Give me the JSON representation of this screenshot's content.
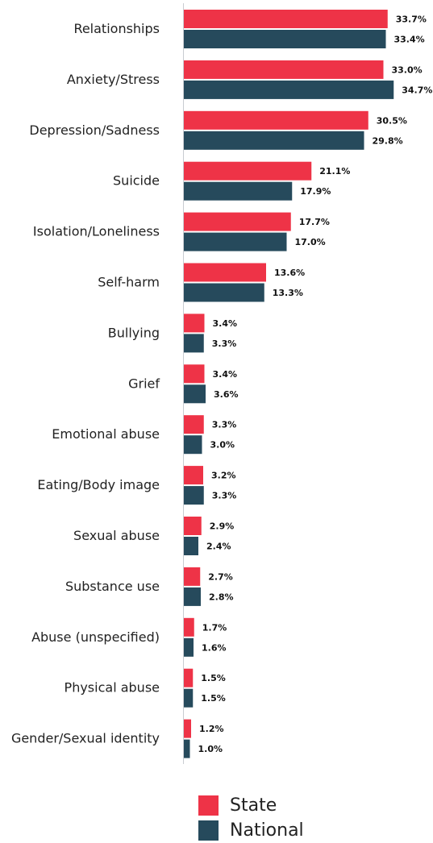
{
  "chart_data": {
    "type": "bar",
    "orientation": "horizontal",
    "categories": [
      "Relationships",
      "Anxiety/Stress",
      "Depression/Sadness",
      "Suicide",
      "Isolation/Loneliness",
      "Self-harm",
      "Bullying",
      "Grief",
      "Emotional abuse",
      "Eating/Body image",
      "Sexual abuse",
      "Substance use",
      "Abuse (unspecified)",
      "Physical abuse",
      "Gender/Sexual identity"
    ],
    "series": [
      {
        "name": "State",
        "color": "#ee3347",
        "values": [
          33.7,
          33.0,
          30.5,
          21.1,
          17.7,
          13.6,
          3.4,
          3.4,
          3.3,
          3.2,
          2.9,
          2.7,
          1.7,
          1.5,
          1.2
        ]
      },
      {
        "name": "National",
        "color": "#264a5c",
        "values": [
          33.4,
          34.7,
          29.8,
          17.9,
          17.0,
          13.3,
          3.3,
          3.6,
          3.0,
          3.3,
          2.4,
          2.8,
          1.6,
          1.5,
          1.0
        ]
      }
    ],
    "value_suffix": "%",
    "legend_position": "bottom",
    "grid": false
  }
}
